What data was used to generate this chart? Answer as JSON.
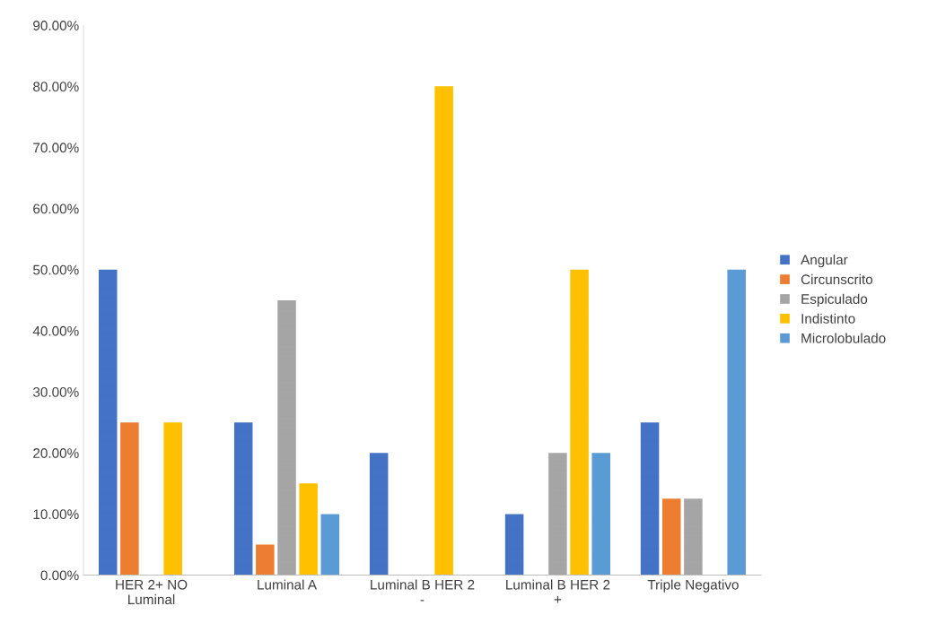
{
  "chart_data": {
    "type": "bar",
    "categories": [
      "HER 2+ NO Luminal",
      "Luminal A",
      "Luminal B HER 2 -",
      "Luminal B HER 2 +",
      "Triple Negativo"
    ],
    "series": [
      {
        "name": "Angular",
        "color": "#4472c4",
        "values": [
          50,
          25,
          20,
          10,
          25
        ]
      },
      {
        "name": "Circunscrito",
        "color": "#ed7d31",
        "values": [
          25,
          5,
          0,
          0,
          12.5
        ]
      },
      {
        "name": "Espiculado",
        "color": "#a5a5a5",
        "values": [
          0,
          45,
          0,
          20,
          12.5
        ]
      },
      {
        "name": "Indistinto",
        "color": "#ffc000",
        "values": [
          25,
          15,
          80,
          50,
          0
        ]
      },
      {
        "name": "Microlobulado",
        "color": "#5b9bd5",
        "values": [
          0,
          10,
          0,
          20,
          50
        ]
      }
    ],
    "ylim": [
      0,
      90
    ],
    "yticks": [
      {
        "value": 0,
        "label": "0.00%"
      },
      {
        "value": 10,
        "label": "10.00%"
      },
      {
        "value": 20,
        "label": "20.00%"
      },
      {
        "value": 30,
        "label": "30.00%"
      },
      {
        "value": 40,
        "label": "40.00%"
      },
      {
        "value": 50,
        "label": "50.00%"
      },
      {
        "value": 60,
        "label": "60.00%"
      },
      {
        "value": 70,
        "label": "70.00%"
      },
      {
        "value": 80,
        "label": "80.00%"
      },
      {
        "value": 90,
        "label": "90.00%"
      }
    ],
    "grid": false,
    "legend": "right"
  }
}
